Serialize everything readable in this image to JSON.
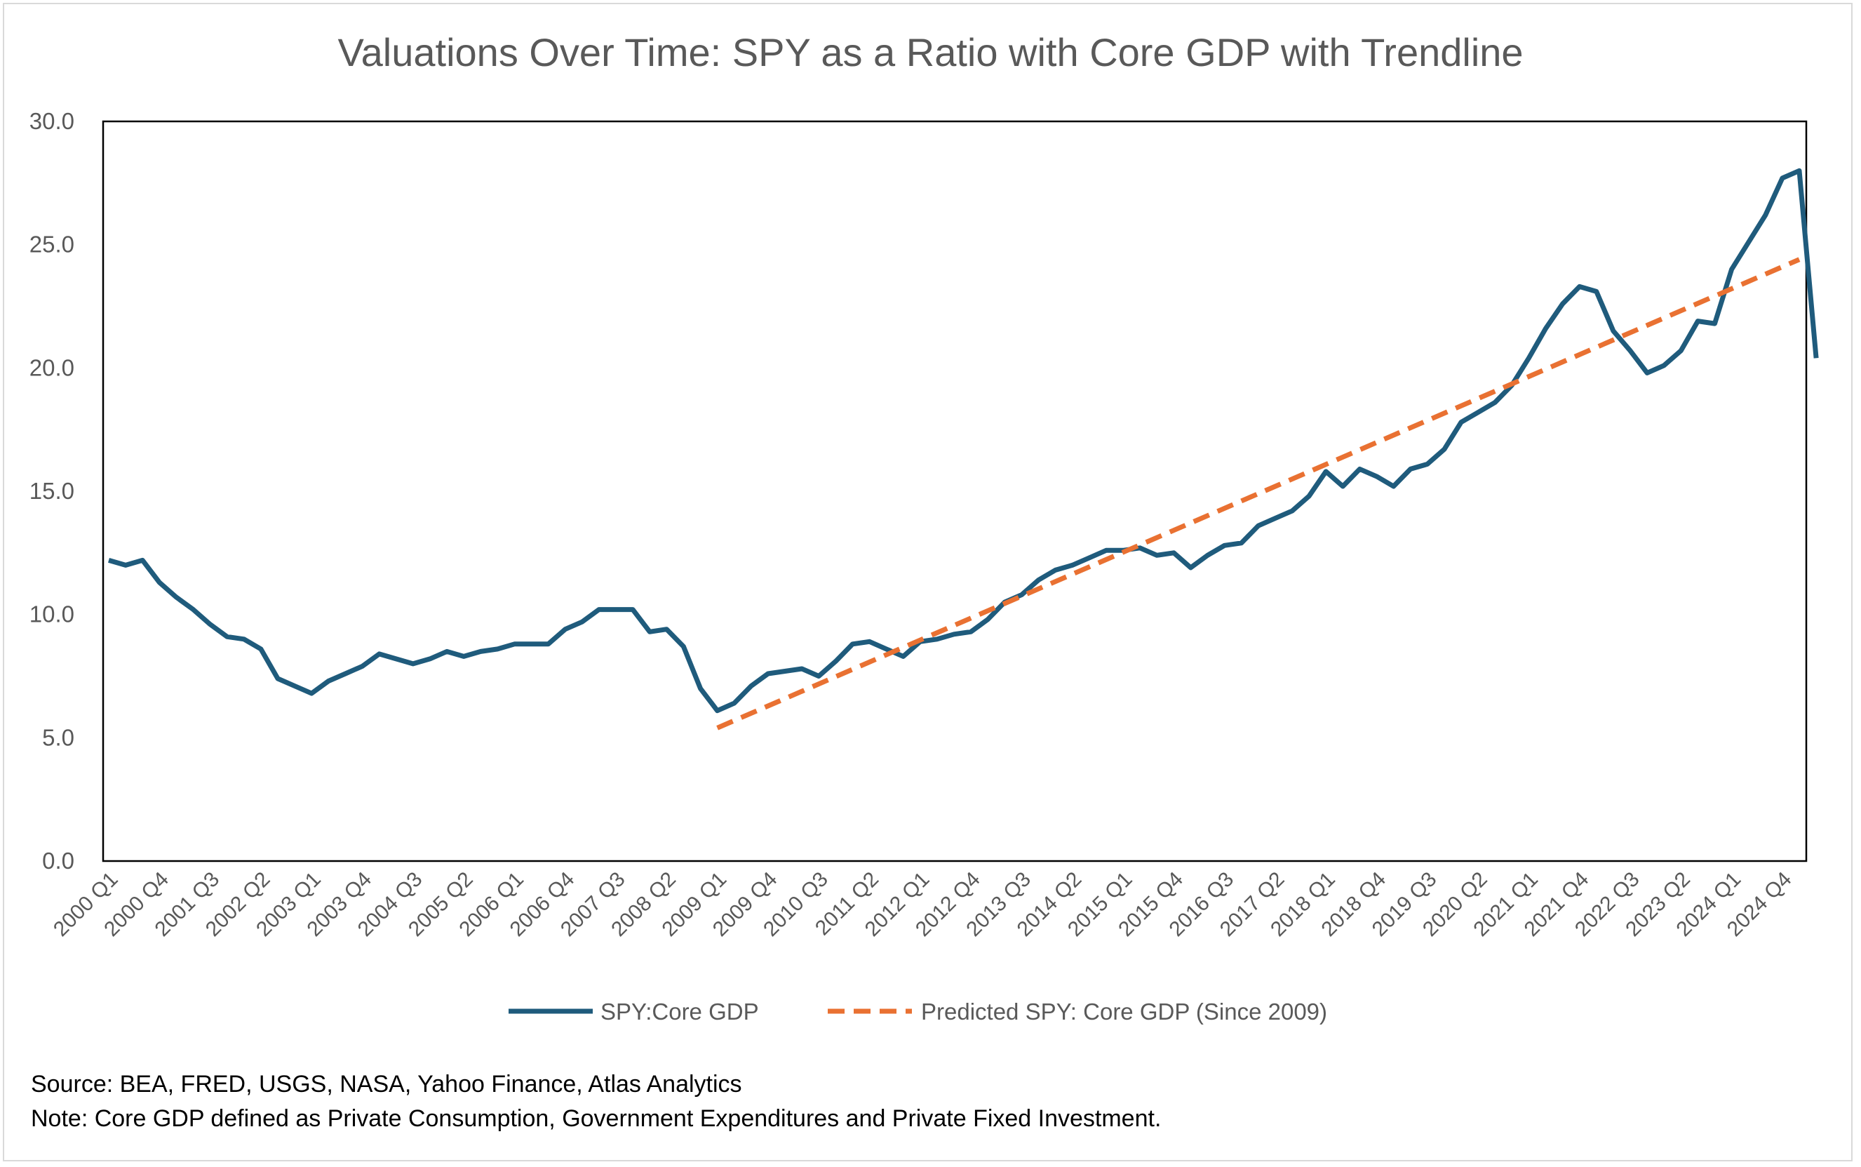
{
  "chart_data": {
    "type": "line",
    "title": "Valuations Over Time: SPY as a Ratio with Core GDP with Trendline",
    "xlabel": "",
    "ylabel": "",
    "ylim": [
      0,
      30
    ],
    "yticks": [
      "0.0",
      "5.0",
      "10.0",
      "15.0",
      "20.0",
      "25.0",
      "30.0"
    ],
    "x_tick_labels": [
      "2000 Q1",
      "2000 Q4",
      "2001 Q3",
      "2002 Q2",
      "2003 Q1",
      "2003 Q4",
      "2004 Q3",
      "2005 Q2",
      "2006 Q1",
      "2006 Q4",
      "2007 Q3",
      "2008 Q2",
      "2009 Q1",
      "2009 Q4",
      "2010 Q3",
      "2011 Q2",
      "2012 Q1",
      "2012 Q4",
      "2013 Q3",
      "2014 Q2",
      "2015 Q1",
      "2015 Q4",
      "2016 Q3",
      "2017 Q2",
      "2018 Q1",
      "2018 Q4",
      "2019 Q3",
      "2020 Q2",
      "2021 Q1",
      "2021 Q4",
      "2022 Q3",
      "2023 Q2",
      "2024 Q1",
      "2024 Q4"
    ],
    "x_tick_every": 3,
    "num_periods": 102,
    "first_period": "2000 Q1",
    "last_period": "2025 Q2",
    "grid": false,
    "legend_position": "bottom",
    "series": [
      {
        "name": "SPY:Core GDP",
        "color": "#1f5b7c",
        "style": "solid",
        "values": [
          12.2,
          12.0,
          12.2,
          11.3,
          10.7,
          10.2,
          9.6,
          9.1,
          9.0,
          8.6,
          7.4,
          7.1,
          6.8,
          7.3,
          7.6,
          7.9,
          8.4,
          8.2,
          8.0,
          8.2,
          8.5,
          8.3,
          8.5,
          8.6,
          8.8,
          8.8,
          8.8,
          9.4,
          9.7,
          10.2,
          10.2,
          10.2,
          9.3,
          9.4,
          8.7,
          7.0,
          6.1,
          6.4,
          7.1,
          7.6,
          7.7,
          7.8,
          7.5,
          8.1,
          8.8,
          8.9,
          8.6,
          8.3,
          8.9,
          9.0,
          9.2,
          9.3,
          9.8,
          10.5,
          10.8,
          11.4,
          11.8,
          12.0,
          12.3,
          12.6,
          12.6,
          12.7,
          12.4,
          12.5,
          11.9,
          12.4,
          12.8,
          12.9,
          13.6,
          13.9,
          14.2,
          14.8,
          15.8,
          15.2,
          15.9,
          15.6,
          15.2,
          15.9,
          16.1,
          16.7,
          17.8,
          18.2,
          18.6,
          19.3,
          20.4,
          21.6,
          22.6,
          23.3,
          23.1,
          21.5,
          20.7,
          19.8,
          20.1,
          20.7,
          21.9,
          21.8,
          24.0,
          25.1,
          26.2,
          27.7,
          28.0,
          20.4
        ]
      },
      {
        "name": "Predicted SPY: Core GDP (Since 2009)",
        "color": "#e97132",
        "style": "dashed",
        "start_period": "2009 Q1",
        "values": [
          5.4,
          24.4
        ]
      }
    ]
  },
  "footer": {
    "source": "Source: BEA,  FRED, USGS, NASA, Yahoo Finance, Atlas Analytics",
    "note": "Note: Core GDP defined as Private Consumption, Government Expenditures and Private Fixed Investment."
  }
}
